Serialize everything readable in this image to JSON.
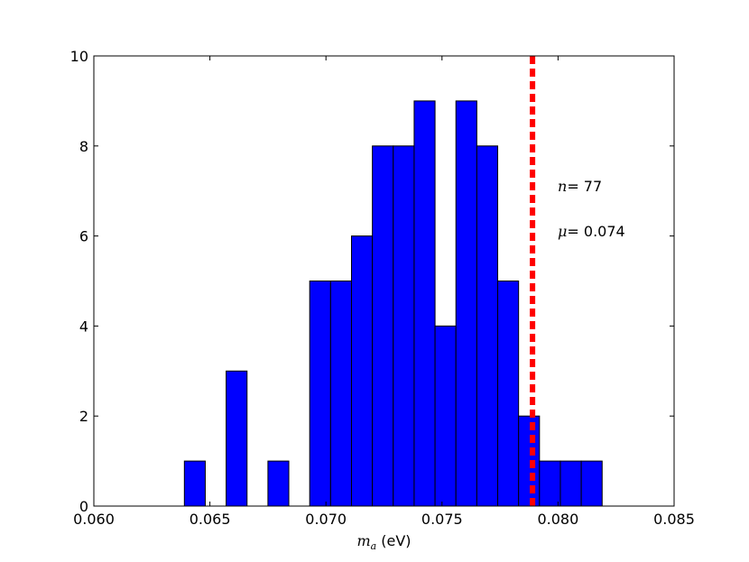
{
  "chart_data": {
    "type": "bar",
    "title": "",
    "xlabel_symbol": "m",
    "xlabel_subscript": "a",
    "xlabel_unit": " (eV)",
    "ylabel": "",
    "xlim": [
      0.06,
      0.085
    ],
    "ylim": [
      0,
      10
    ],
    "xticks": [
      "0.060",
      "0.065",
      "0.070",
      "0.075",
      "0.080",
      "0.085"
    ],
    "yticks": [
      "0",
      "2",
      "4",
      "6",
      "8",
      "10"
    ],
    "bin_width": 0.0009,
    "bars": [
      {
        "x": 0.0639,
        "value": 1
      },
      {
        "x": 0.0657,
        "value": 3
      },
      {
        "x": 0.0675,
        "value": 1
      },
      {
        "x": 0.0693,
        "value": 5
      },
      {
        "x": 0.0702,
        "value": 5
      },
      {
        "x": 0.0711,
        "value": 6
      },
      {
        "x": 0.072,
        "value": 8
      },
      {
        "x": 0.0729,
        "value": 8
      },
      {
        "x": 0.0738,
        "value": 9
      },
      {
        "x": 0.0747,
        "value": 4
      },
      {
        "x": 0.0756,
        "value": 9
      },
      {
        "x": 0.0765,
        "value": 8
      },
      {
        "x": 0.0774,
        "value": 5
      },
      {
        "x": 0.0783,
        "value": 2
      },
      {
        "x": 0.0792,
        "value": 1
      },
      {
        "x": 0.0801,
        "value": 1
      },
      {
        "x": 0.081,
        "value": 1
      }
    ],
    "bar_color": "#0000ff",
    "vline": {
      "x": 0.0789,
      "color": "#ff0000",
      "style": "dashed"
    },
    "annotations": [
      {
        "symbol": "n",
        "text": "= 77"
      },
      {
        "symbol": "μ",
        "text": "= 0.074"
      }
    ],
    "grid": false,
    "legend": "none"
  }
}
